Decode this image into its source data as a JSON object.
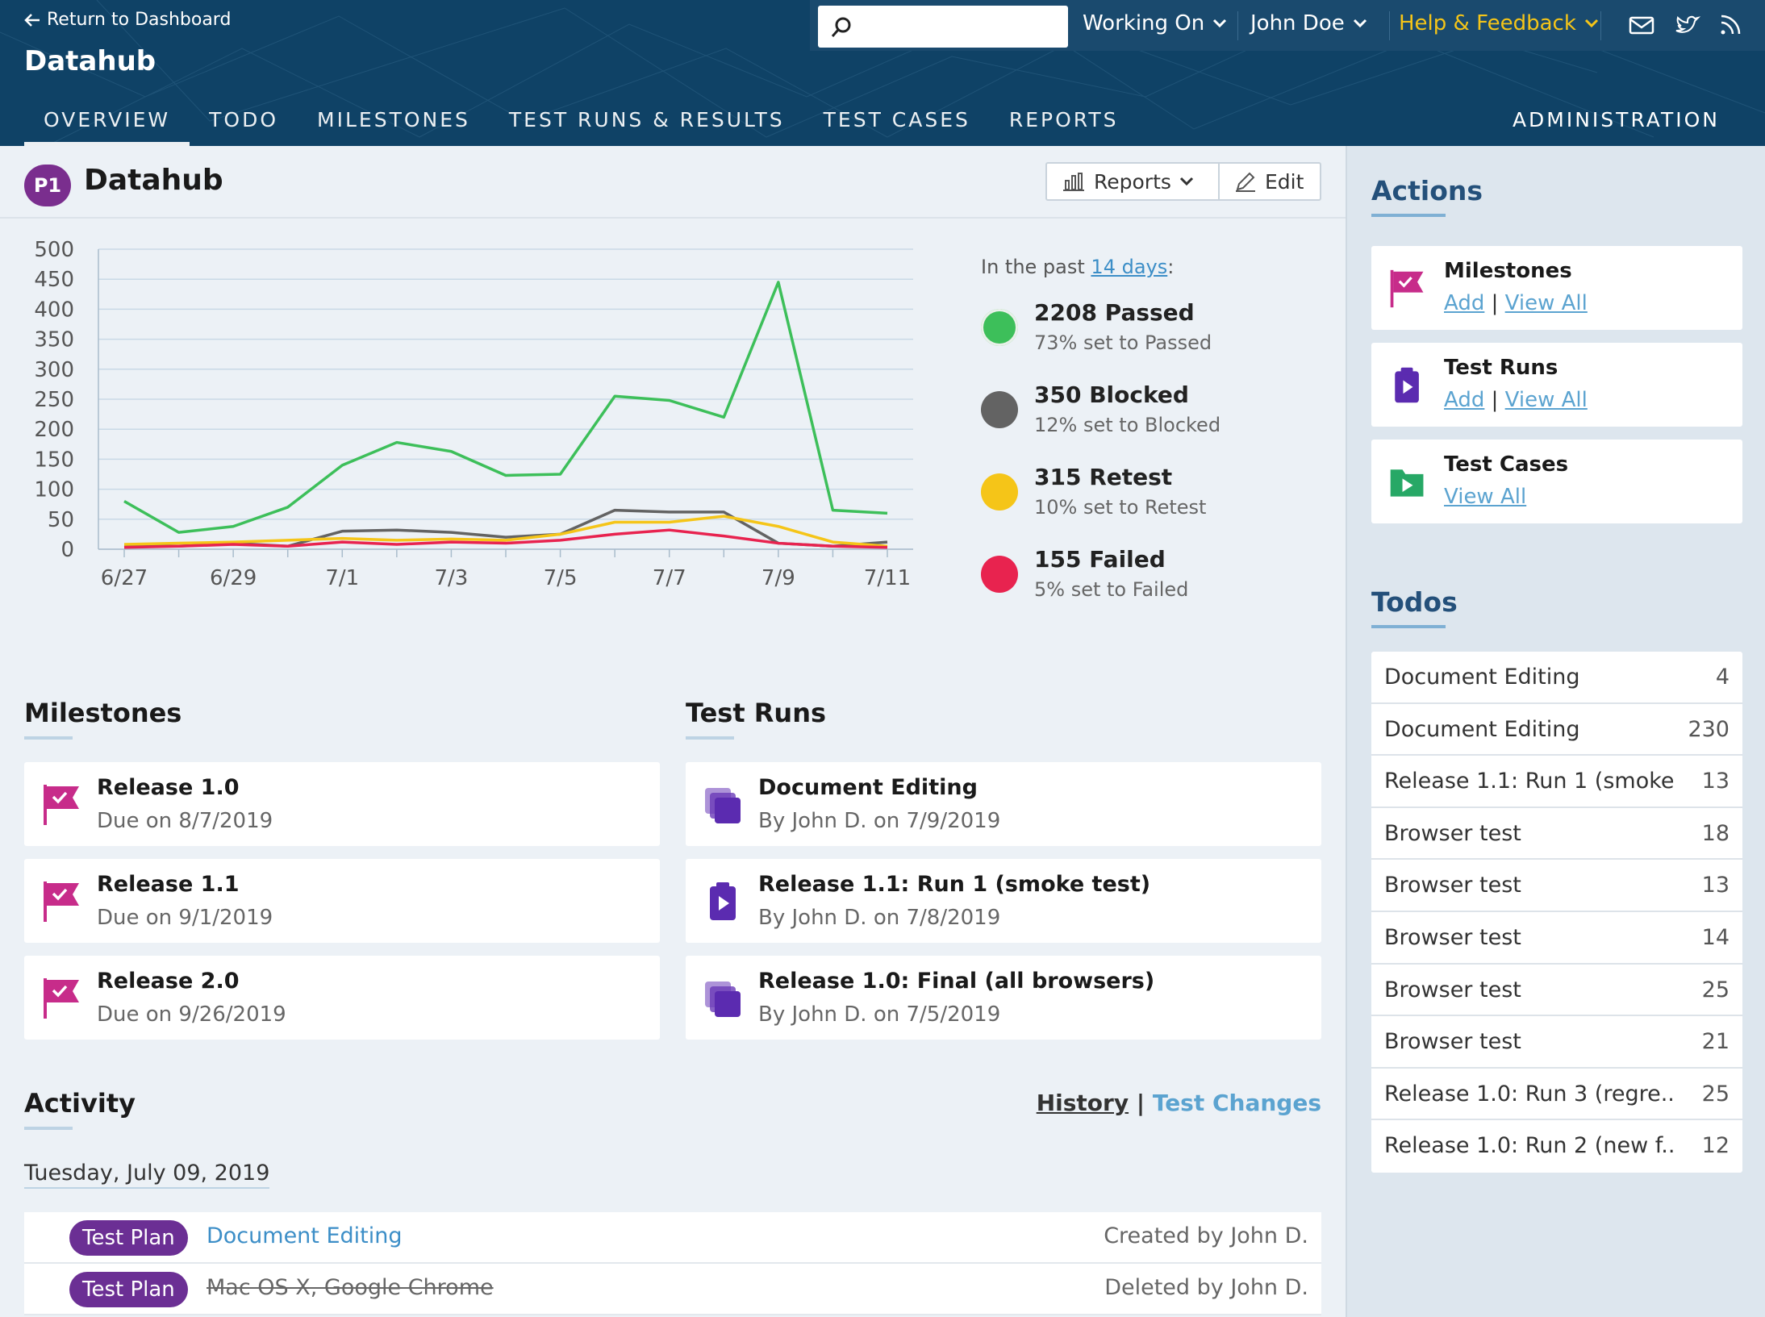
{
  "header": {
    "return_label": "Return to Dashboard",
    "app_title": "Datahub",
    "search_placeholder": "",
    "working_on": "Working On",
    "user": "John Doe",
    "help": "Help & Feedback",
    "nav": [
      "OVERVIEW",
      "TODO",
      "MILESTONES",
      "TEST RUNS & RESULTS",
      "TEST CASES",
      "REPORTS"
    ],
    "admin": "ADMINISTRATION",
    "icons": [
      "mail-icon",
      "twitter-icon",
      "rss-icon"
    ]
  },
  "page": {
    "badge": "P1",
    "title": "Datahub",
    "reports_button": "Reports",
    "edit_button": "Edit"
  },
  "stats": {
    "lead_prefix": "In the past ",
    "lead_link": "14 days",
    "lead_suffix": ":",
    "items": [
      {
        "title": "2208 Passed",
        "sub": "73% set to Passed",
        "color": "#3dbf5a"
      },
      {
        "title": "350 Blocked",
        "sub": "12% set to Blocked",
        "color": "#636363"
      },
      {
        "title": "315 Retest",
        "sub": "10% set to Retest",
        "color": "#f5c518"
      },
      {
        "title": "155 Failed",
        "sub": "5% set to Failed",
        "color": "#e8234f"
      }
    ]
  },
  "chart_data": {
    "type": "line",
    "x": [
      "6/27",
      "6/28",
      "6/29",
      "6/30",
      "7/1",
      "7/2",
      "7/3",
      "7/4",
      "7/5",
      "7/6",
      "7/7",
      "7/8",
      "7/9",
      "7/10",
      "7/11"
    ],
    "x_tick_labels": [
      "6/27",
      "6/29",
      "7/1",
      "7/3",
      "7/5",
      "7/7",
      "7/9",
      "7/11"
    ],
    "yticks": [
      0,
      50,
      100,
      150,
      200,
      250,
      300,
      350,
      400,
      450,
      500
    ],
    "ylim": [
      0,
      500
    ],
    "series": [
      {
        "key": "passed",
        "color": "#3dbf5a",
        "values": [
          80,
          28,
          38,
          70,
          140,
          178,
          163,
          123,
          125,
          255,
          248,
          220,
          445,
          65,
          60
        ]
      },
      {
        "key": "blocked",
        "color": "#636363",
        "values": [
          5,
          5,
          10,
          5,
          30,
          32,
          28,
          20,
          25,
          65,
          62,
          62,
          10,
          5,
          12
        ]
      },
      {
        "key": "retest",
        "color": "#f5c518",
        "values": [
          8,
          10,
          12,
          15,
          18,
          15,
          17,
          15,
          25,
          45,
          45,
          55,
          38,
          12,
          5
        ]
      },
      {
        "key": "failed",
        "color": "#e8234f",
        "values": [
          3,
          5,
          8,
          5,
          12,
          8,
          12,
          10,
          15,
          25,
          32,
          22,
          10,
          5,
          3
        ]
      }
    ]
  },
  "milestones": {
    "title": "Milestones",
    "items": [
      {
        "name": "Release 1.0",
        "due": "Due on 8/7/2019"
      },
      {
        "name": "Release 1.1",
        "due": "Due on 9/1/2019"
      },
      {
        "name": "Release 2.0",
        "due": "Due on 9/26/2019"
      }
    ]
  },
  "test_runs": {
    "title": "Test Runs",
    "items": [
      {
        "name": "Document Editing",
        "by": "By John D. on 7/9/2019",
        "icon": "stack"
      },
      {
        "name": "Release 1.1: Run 1 (smoke test)",
        "by": "By John D. on 7/8/2019",
        "icon": "clipboard"
      },
      {
        "name": "Release 1.0: Final (all browsers)",
        "by": "By John D. on 7/5/2019",
        "icon": "stack"
      }
    ]
  },
  "activity": {
    "title": "Activity",
    "history": "History",
    "sep": "|",
    "test_changes": "Test Changes",
    "date": "Tuesday, July 09, 2019",
    "rows": [
      {
        "type": "Test Plan",
        "name": "Document Editing",
        "by": "Created by John D."
      },
      {
        "type": "Test Plan",
        "name": "Mac OS X, Google Chrome",
        "by": "Deleted by John D."
      }
    ]
  },
  "sidebar": {
    "actions_title": "Actions",
    "actions": [
      {
        "title": "Milestones",
        "add": "Add",
        "sep": "|",
        "view": "View All"
      },
      {
        "title": "Test Runs",
        "add": "Add",
        "sep": "|",
        "view": "View All"
      },
      {
        "title": "Test Cases",
        "view": "View All"
      }
    ],
    "todos_title": "Todos",
    "todos": [
      {
        "name": "Document Editing",
        "count": "4"
      },
      {
        "name": "Document Editing",
        "count": "230"
      },
      {
        "name": "Release 1.1: Run 1 (smoke ...",
        "count": "13"
      },
      {
        "name": "Browser test",
        "count": "18"
      },
      {
        "name": "Browser test",
        "count": "13"
      },
      {
        "name": "Browser test",
        "count": "14"
      },
      {
        "name": "Browser test",
        "count": "25"
      },
      {
        "name": "Browser test",
        "count": "21"
      },
      {
        "name": "Release 1.0: Run 3 (regre...",
        "count": "25"
      },
      {
        "name": "Release 1.0: Run 2 (new f...",
        "count": "12"
      }
    ]
  }
}
